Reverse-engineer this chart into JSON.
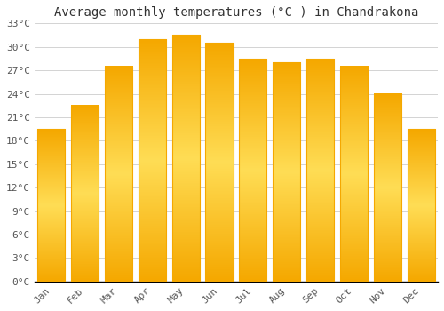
{
  "title": "Average monthly temperatures (°C ) in Chandrakona",
  "months": [
    "Jan",
    "Feb",
    "Mar",
    "Apr",
    "May",
    "Jun",
    "Jul",
    "Aug",
    "Sep",
    "Oct",
    "Nov",
    "Dec"
  ],
  "values": [
    19.5,
    22.5,
    27.5,
    31.0,
    31.5,
    30.5,
    28.5,
    28.0,
    28.5,
    27.5,
    24.0,
    19.5
  ],
  "bar_color_center": "#FFCC44",
  "bar_color_edge": "#F5A800",
  "ylim": [
    0,
    33
  ],
  "yticks": [
    0,
    3,
    6,
    9,
    12,
    15,
    18,
    21,
    24,
    27,
    30,
    33
  ],
  "ytick_labels": [
    "0°C",
    "3°C",
    "6°C",
    "9°C",
    "12°C",
    "15°C",
    "18°C",
    "21°C",
    "24°C",
    "27°C",
    "30°C",
    "33°C"
  ],
  "background_color": "#ffffff",
  "grid_color": "#cccccc",
  "title_fontsize": 10,
  "tick_fontsize": 8,
  "bar_width": 0.82,
  "figsize": [
    5.0,
    3.5
  ],
  "dpi": 100
}
